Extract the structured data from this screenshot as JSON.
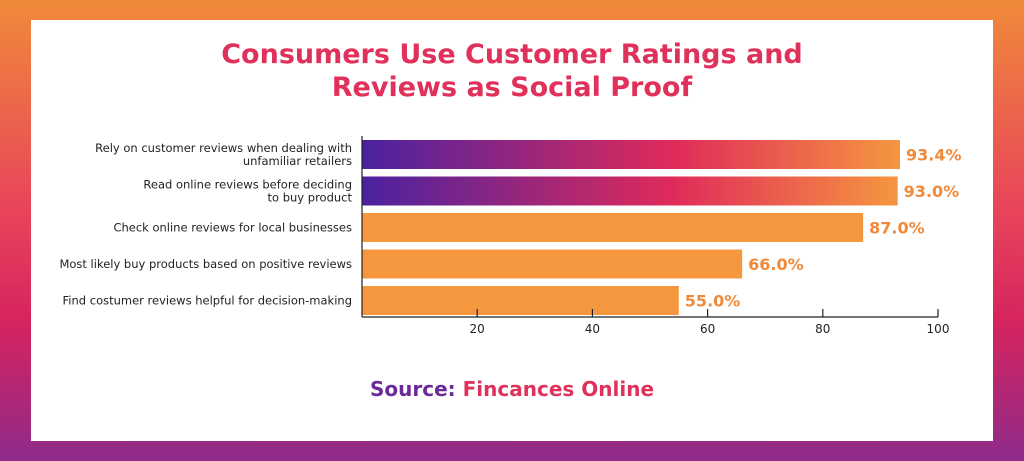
{
  "chart_data": {
    "type": "bar",
    "orientation": "horizontal",
    "title": "Consumers Use Customer Ratings and Reviews as Social Proof",
    "title_lines": [
      "Consumers Use Customer Ratings and",
      "Reviews as Social Proof"
    ],
    "categories": [
      [
        "Rely on customer reviews when dealing with",
        "unfamiliar retailers"
      ],
      [
        "Read online reviews before deciding",
        "to buy product"
      ],
      [
        "Check online reviews for local businesses"
      ],
      [
        "Most likely buy products based on positive reviews"
      ],
      [
        "Find costumer reviews helpful for decision-making"
      ]
    ],
    "values": [
      93.4,
      93.0,
      87.0,
      66.0,
      55.0
    ],
    "value_labels": [
      "93.4%",
      "93.0%",
      "87.0%",
      "66.0%",
      "55.0%"
    ],
    "gradient_bars": [
      true,
      true,
      false,
      false,
      false
    ],
    "xlim": [
      0,
      100
    ],
    "xticks": [
      20,
      40,
      60,
      80,
      100
    ],
    "xlabel": "",
    "ylabel": "",
    "grid": false,
    "legend": "none",
    "colors": {
      "bar": "#f5973f",
      "gradient_start": "#4a22a0",
      "gradient_mid": "#e02a5a",
      "gradient_end": "#f5973f",
      "title": "#e0315a",
      "value_text": "#f08a3a"
    }
  },
  "source": {
    "label": "Source:",
    "value": "Fincances Online"
  }
}
